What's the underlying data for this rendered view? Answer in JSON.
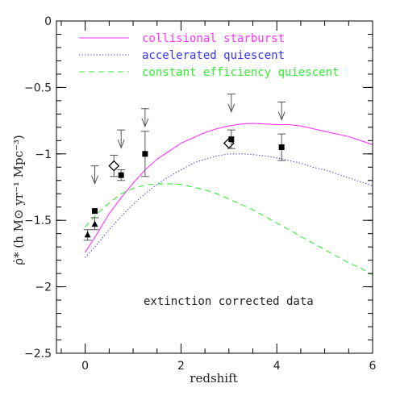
{
  "chart_data": {
    "type": "scatter",
    "xlabel": "redshift",
    "ylabel": "ρ̇* (h M⊙ yr⁻¹ Mpc⁻³)",
    "xlim": [
      -0.6,
      6
    ],
    "ylim": [
      -2.5,
      0
    ],
    "xticks": [
      0,
      2,
      4,
      6
    ],
    "yticks": [
      -2.5,
      -2,
      -1.5,
      -1,
      -0.5,
      0
    ],
    "xtick_labels": [
      "0",
      "2",
      "4",
      "6"
    ],
    "ytick_labels": [
      "−2.5",
      "−2",
      "−1.5",
      "−1",
      "−0.5",
      "0"
    ],
    "grid": false,
    "legend_position": "top-left",
    "annotation": "extinction corrected data",
    "colors": {
      "collisional": "#ff33ff",
      "accelerated": "#3333ff",
      "constant": "#33ee33",
      "data": "#000000"
    },
    "series": [
      {
        "name": "collisional starburst",
        "style": "solid",
        "color": "#ff33ff",
        "x": [
          0,
          0.25,
          0.5,
          0.75,
          1,
          1.25,
          1.5,
          1.75,
          2,
          2.25,
          2.5,
          2.75,
          3,
          3.25,
          3.5,
          3.75,
          4,
          4.25,
          4.5,
          4.75,
          5,
          5.25,
          5.5,
          5.75,
          6
        ],
        "y": [
          -1.74,
          -1.6,
          -1.45,
          -1.33,
          -1.22,
          -1.12,
          -1.04,
          -0.98,
          -0.92,
          -0.88,
          -0.84,
          -0.81,
          -0.79,
          -0.775,
          -0.77,
          -0.775,
          -0.78,
          -0.78,
          -0.79,
          -0.81,
          -0.83,
          -0.85,
          -0.87,
          -0.9,
          -0.93
        ]
      },
      {
        "name": "accelerated quiescent",
        "style": "dotted",
        "color": "#3333ff",
        "x": [
          0,
          0.25,
          0.5,
          0.75,
          1,
          1.25,
          1.5,
          1.75,
          2,
          2.25,
          2.5,
          2.75,
          3,
          3.25,
          3.5,
          3.75,
          4,
          4.25,
          4.5,
          4.75,
          5,
          5.25,
          5.5,
          5.75,
          6
        ],
        "y": [
          -1.78,
          -1.68,
          -1.57,
          -1.47,
          -1.38,
          -1.3,
          -1.23,
          -1.17,
          -1.12,
          -1.07,
          -1.04,
          -1.015,
          -1.0,
          -1.0,
          -1.005,
          -1.015,
          -1.03,
          -1.05,
          -1.07,
          -1.1,
          -1.12,
          -1.15,
          -1.18,
          -1.21,
          -1.24
        ]
      },
      {
        "name": "constant efficiency quiescent",
        "style": "dashed",
        "color": "#33ee33",
        "x": [
          0,
          0.25,
          0.5,
          0.75,
          1,
          1.25,
          1.5,
          1.75,
          2,
          2.25,
          2.5,
          2.75,
          3,
          3.25,
          3.5,
          3.75,
          4,
          4.25,
          4.5,
          4.75,
          5,
          5.25,
          5.5,
          5.75,
          6
        ],
        "y": [
          -1.55,
          -1.45,
          -1.37,
          -1.3,
          -1.26,
          -1.235,
          -1.225,
          -1.225,
          -1.23,
          -1.25,
          -1.27,
          -1.3,
          -1.34,
          -1.38,
          -1.42,
          -1.47,
          -1.52,
          -1.57,
          -1.62,
          -1.67,
          -1.72,
          -1.77,
          -1.82,
          -1.86,
          -1.91
        ]
      }
    ],
    "points": [
      {
        "marker": "triangle",
        "x": 0.05,
        "y": -1.61,
        "err_lo": 0.04,
        "err_hi": 0.04
      },
      {
        "marker": "triangle",
        "x": 0.2,
        "y": -1.53,
        "err_lo": 0.04,
        "err_hi": 0.05
      },
      {
        "marker": "square",
        "x": 0.2,
        "y": -1.43
      },
      {
        "marker": "diamond",
        "x": 0.6,
        "y": -1.09,
        "err_lo": 0.08,
        "err_hi": 0.08
      },
      {
        "marker": "square",
        "x": 0.75,
        "y": -1.16,
        "err_lo": 0.04,
        "err_hi": 0.04
      },
      {
        "marker": "square",
        "x": 1.25,
        "y": -1.0,
        "err_lo": 0.17,
        "err_hi": 0.17
      },
      {
        "marker": "diamond",
        "x": 3.0,
        "y": -0.92
      },
      {
        "marker": "square",
        "x": 3.05,
        "y": -0.89,
        "err_lo": 0.07,
        "err_hi": 0.07
      },
      {
        "marker": "square",
        "x": 4.1,
        "y": -0.95,
        "err_lo": 0.1,
        "err_hi": 0.1
      }
    ],
    "upper_limits": [
      {
        "x": 0.2,
        "y": -1.09
      },
      {
        "x": 0.75,
        "y": -0.82
      },
      {
        "x": 1.25,
        "y": -0.66
      },
      {
        "x": 3.05,
        "y": -0.55
      },
      {
        "x": 4.1,
        "y": -0.61
      }
    ]
  }
}
